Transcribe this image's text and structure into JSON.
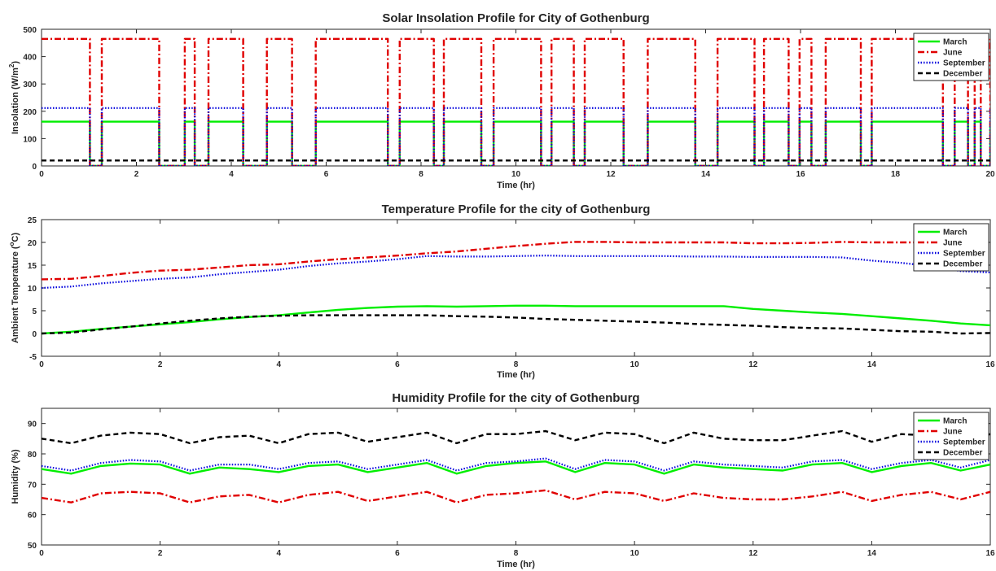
{
  "colors": {
    "March": "#00ee00",
    "June": "#e00000",
    "September": "#0000dd",
    "December": "#000000"
  },
  "chart_data": [
    {
      "type": "line",
      "title": "Solar Insolation Profile for City of Gothenburg",
      "xlabel": "Time (hr)",
      "ylabel": "Insolation (W/m",
      "ylabel_sup": "2",
      "ylabel_end": ")",
      "xlim": [
        0,
        20
      ],
      "ylim": [
        0,
        500
      ],
      "xticks": [
        0,
        2,
        4,
        6,
        8,
        10,
        12,
        14,
        16,
        18,
        20
      ],
      "yticks": [
        0,
        100,
        200,
        300,
        400,
        500
      ],
      "grid": false,
      "legend_position": "top-right",
      "sun_intervals": [
        [
          0,
          1.02
        ],
        [
          1.27,
          2.48
        ],
        [
          3.02,
          3.23
        ],
        [
          3.52,
          4.25
        ],
        [
          4.75,
          5.28
        ],
        [
          5.78,
          7.3
        ],
        [
          7.55,
          8.27
        ],
        [
          8.48,
          9.27
        ],
        [
          9.53,
          10.53
        ],
        [
          10.75,
          11.22
        ],
        [
          11.45,
          12.27
        ],
        [
          12.78,
          13.78
        ],
        [
          14.25,
          15.03
        ],
        [
          15.23,
          15.75
        ],
        [
          15.98,
          16.23
        ],
        [
          16.53,
          17.27
        ],
        [
          17.5,
          19.0
        ],
        [
          19.25,
          19.53
        ],
        [
          19.67,
          19.8
        ],
        [
          20.0,
          20.0
        ]
      ],
      "series": [
        {
          "name": "March",
          "on_value": 162,
          "off_value": 0,
          "style": "solid"
        },
        {
          "name": "June",
          "on_value": 465,
          "off_value": 0,
          "style": "dashdot"
        },
        {
          "name": "September",
          "on_value": 212,
          "off_value": 0,
          "style": "dotted"
        },
        {
          "name": "December",
          "on_value": 20,
          "off_value": 20,
          "style": "dashed"
        }
      ]
    },
    {
      "type": "line",
      "title": "Temperature Profile for the city of Gothenburg",
      "xlabel": "Time (hr)",
      "ylabel": "Ambient Temperature (",
      "ylabel_sup": "o",
      "ylabel_end": "C)",
      "xlim": [
        0,
        16
      ],
      "ylim": [
        -5,
        25
      ],
      "xticks": [
        0,
        2,
        4,
        6,
        8,
        10,
        12,
        14,
        16
      ],
      "yticks": [
        -5,
        0,
        5,
        10,
        15,
        20,
        25
      ],
      "grid": false,
      "legend_position": "top-right",
      "x": [
        0,
        0.5,
        1,
        1.5,
        2,
        2.5,
        3,
        3.5,
        4,
        4.5,
        5,
        5.5,
        6,
        6.5,
        7,
        7.5,
        8,
        8.5,
        9,
        9.5,
        10,
        10.5,
        11,
        11.5,
        12,
        12.5,
        13,
        13.5,
        14,
        14.5,
        15,
        15.5,
        16
      ],
      "series": [
        {
          "name": "March",
          "style": "solid",
          "values": [
            0,
            0.4,
            1.0,
            1.5,
            2.0,
            2.5,
            3.1,
            3.6,
            4.0,
            4.6,
            5.2,
            5.6,
            5.9,
            6.0,
            5.9,
            6.0,
            6.1,
            6.1,
            6.0,
            6.0,
            6.0,
            6.0,
            6.0,
            6.0,
            5.4,
            5.0,
            4.6,
            4.3,
            3.8,
            3.3,
            2.8,
            2.2,
            1.8
          ]
        },
        {
          "name": "June",
          "style": "dashdot",
          "values": [
            11.9,
            12.0,
            12.6,
            13.3,
            13.8,
            14.0,
            14.5,
            15.0,
            15.2,
            15.8,
            16.3,
            16.7,
            17.1,
            17.6,
            18.0,
            18.6,
            19.2,
            19.7,
            20.1,
            20.1,
            20.0,
            20.0,
            20.0,
            20.0,
            19.8,
            19.8,
            19.9,
            20.1,
            20.0,
            20.0,
            20.0,
            20.0,
            20.1
          ]
        },
        {
          "name": "September",
          "style": "dotted",
          "values": [
            10.0,
            10.3,
            11.0,
            11.5,
            12.0,
            12.3,
            13.0,
            13.5,
            14.0,
            14.8,
            15.4,
            15.8,
            16.3,
            17.0,
            16.9,
            16.9,
            17.0,
            17.1,
            17.0,
            17.0,
            17.0,
            17.0,
            16.9,
            16.9,
            16.8,
            16.8,
            16.8,
            16.7,
            16.0,
            15.5,
            14.8,
            13.7,
            13.4
          ]
        },
        {
          "name": "December",
          "style": "dashed",
          "values": [
            0,
            0.2,
            0.9,
            1.5,
            2.2,
            2.8,
            3.3,
            3.7,
            3.9,
            4.0,
            4.0,
            4.0,
            4.0,
            4.0,
            3.8,
            3.7,
            3.5,
            3.2,
            3.0,
            2.8,
            2.6,
            2.4,
            2.1,
            1.9,
            1.7,
            1.4,
            1.2,
            1.1,
            0.8,
            0.5,
            0.4,
            0.0,
            0.1
          ]
        }
      ]
    },
    {
      "type": "line",
      "title": "Humidity Profile for the city of Gothenburg",
      "xlabel": "Time (hr)",
      "ylabel": "Humidity (%)",
      "ylabel_sup": "",
      "ylabel_end": "",
      "xlim": [
        0,
        16
      ],
      "ylim": [
        50,
        95
      ],
      "xticks": [
        0,
        2,
        4,
        6,
        8,
        10,
        12,
        14,
        16
      ],
      "yticks": [
        50,
        60,
        70,
        80,
        90
      ],
      "grid": false,
      "legend_position": "top-right",
      "x": [
        0,
        0.5,
        1,
        1.5,
        2,
        2.5,
        3,
        3.5,
        4,
        4.5,
        5,
        5.5,
        6,
        6.5,
        7,
        7.5,
        8,
        8.5,
        9,
        9.5,
        10,
        10.5,
        11,
        11.5,
        12,
        12.5,
        13,
        13.5,
        14,
        14.5,
        15,
        15.5,
        16
      ],
      "series": [
        {
          "name": "March",
          "style": "solid",
          "values": [
            75,
            73.5,
            76,
            76.8,
            76.5,
            73.5,
            75.5,
            75,
            74,
            76,
            76.5,
            74,
            75.5,
            77,
            73.5,
            76,
            77,
            77.5,
            74,
            77,
            76.5,
            73.5,
            76.5,
            75.5,
            75,
            74.5,
            76.5,
            77,
            74,
            76,
            77,
            74.5,
            76.5
          ]
        },
        {
          "name": "June",
          "style": "dashdot",
          "values": [
            65.5,
            64,
            67,
            67.5,
            67,
            64,
            66,
            66.5,
            64,
            66.5,
            67.5,
            64.5,
            66,
            67.5,
            64,
            66.5,
            67,
            68,
            65,
            67.5,
            67,
            64.5,
            67,
            65.5,
            65,
            65,
            66,
            67.5,
            64.5,
            66.5,
            67.5,
            65,
            67.5
          ]
        },
        {
          "name": "September",
          "style": "dotted",
          "values": [
            76,
            74.5,
            77,
            78,
            77.5,
            74.5,
            76.5,
            76.5,
            75,
            77,
            77.5,
            75,
            76.5,
            78,
            74.5,
            77,
            77.5,
            78.5,
            75,
            78,
            77.5,
            74.5,
            77.5,
            76.5,
            76,
            75.5,
            77.5,
            78,
            75,
            77,
            78,
            75.5,
            78
          ]
        },
        {
          "name": "December",
          "style": "dashed",
          "values": [
            85,
            83.5,
            86,
            87,
            86.5,
            83.5,
            85.5,
            86,
            83.5,
            86.5,
            87,
            84,
            85.5,
            87,
            83.5,
            86.5,
            86.5,
            87.5,
            84.5,
            87,
            86.5,
            83.5,
            87,
            85,
            84.5,
            84.5,
            86,
            87.5,
            84,
            86.5,
            86,
            84,
            86.5
          ]
        }
      ]
    }
  ]
}
